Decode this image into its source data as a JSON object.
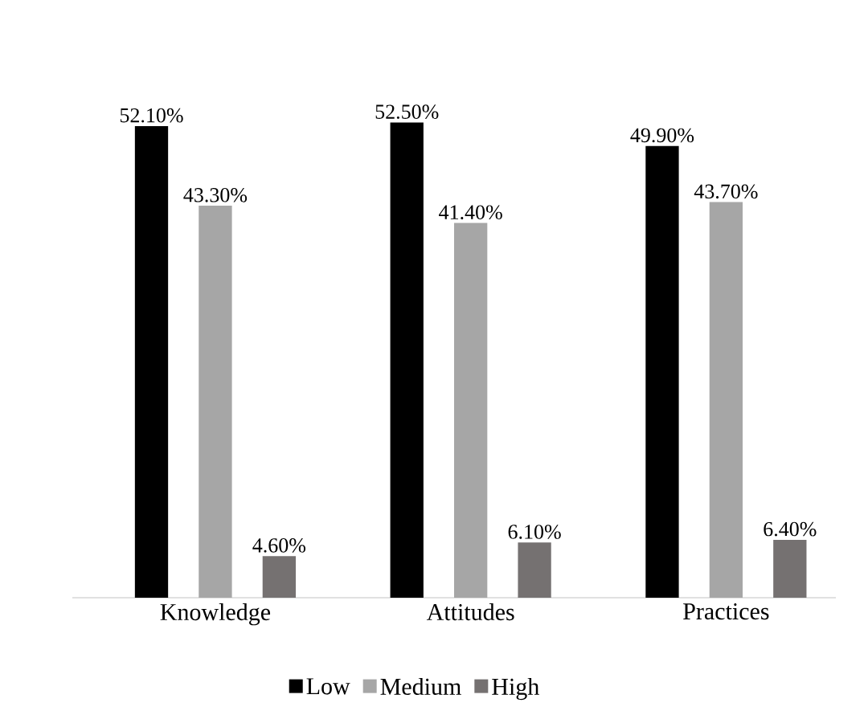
{
  "chart_data": {
    "type": "bar",
    "categories": [
      "Knowledge",
      "Attitudes",
      "Practices"
    ],
    "series": [
      {
        "name": "Low",
        "color": "#000000",
        "values": [
          52.1,
          52.5,
          49.9
        ],
        "value_labels": [
          "52.10%",
          "52.50%",
          "49.90%"
        ]
      },
      {
        "name": "Medium",
        "color": "#a6a6a6",
        "values": [
          43.3,
          41.4,
          43.7
        ],
        "value_labels": [
          "43.30%",
          "41.40%",
          "43.70%"
        ]
      },
      {
        "name": "High",
        "color": "#757171",
        "values": [
          4.6,
          6.1,
          6.4
        ],
        "value_labels": [
          "4.60%",
          "6.10%",
          "6.40%"
        ]
      }
    ],
    "legend": "bottom"
  }
}
